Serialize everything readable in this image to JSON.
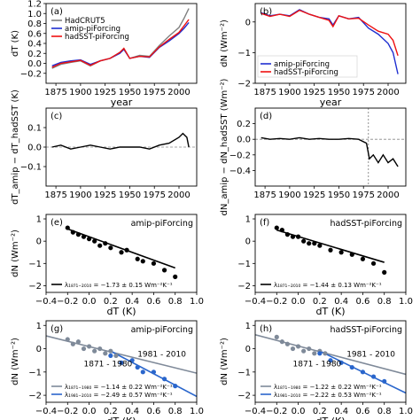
{
  "chart_data": [
    {
      "panel": "a",
      "panel_label": "(a)",
      "type": "line",
      "xlabel": "year",
      "ylabel": "dT (K)",
      "xlim": [
        1865,
        2018
      ],
      "ylim": [
        -0.4,
        1.2
      ],
      "xticks": [
        1875,
        1900,
        1925,
        1950,
        1975,
        2000
      ],
      "yticks": [
        -0.2,
        0.0,
        0.2,
        0.4,
        0.6,
        0.8,
        1.0,
        1.2
      ],
      "legend": {
        "placement": "top-left",
        "entries": [
          "HadCRUT5",
          "amip-piForcing",
          "hadSST-piForcing"
        ]
      },
      "series": [
        {
          "name": "HadCRUT5",
          "color": "#808080",
          "x": [
            1871,
            1880,
            1890,
            1900,
            1910,
            1920,
            1930,
            1940,
            1944,
            1950,
            1960,
            1970,
            1980,
            1990,
            2000,
            2005,
            2010
          ],
          "y": [
            -0.1,
            -0.02,
            0.02,
            0.05,
            -0.05,
            0.05,
            0.1,
            0.22,
            0.3,
            0.1,
            0.16,
            0.14,
            0.36,
            0.55,
            0.72,
            0.9,
            1.1
          ]
        },
        {
          "name": "amip-piForcing",
          "color": "#1f2fd0",
          "x": [
            1871,
            1880,
            1890,
            1900,
            1910,
            1920,
            1930,
            1940,
            1944,
            1950,
            1960,
            1970,
            1980,
            1990,
            2000,
            2005,
            2010
          ],
          "y": [
            -0.05,
            0.02,
            0.05,
            0.07,
            -0.02,
            0.05,
            0.1,
            0.2,
            0.28,
            0.1,
            0.14,
            0.12,
            0.32,
            0.45,
            0.6,
            0.7,
            0.82
          ]
        },
        {
          "name": "hadSST-piForcing",
          "color": "#ee1111",
          "x": [
            1871,
            1880,
            1890,
            1900,
            1910,
            1920,
            1930,
            1940,
            1944,
            1950,
            1960,
            1970,
            1980,
            1990,
            2000,
            2005,
            2010
          ],
          "y": [
            -0.08,
            0.0,
            0.03,
            0.06,
            -0.04,
            0.05,
            0.1,
            0.22,
            0.3,
            0.1,
            0.14,
            0.13,
            0.33,
            0.48,
            0.62,
            0.75,
            0.88
          ]
        }
      ]
    },
    {
      "panel": "b",
      "panel_label": "(b)",
      "type": "line",
      "xlabel": "year",
      "ylabel": "dN (Wm⁻²)",
      "xlim": [
        1865,
        2018
      ],
      "ylim": [
        -2.0,
        0.6
      ],
      "xticks": [
        1875,
        1900,
        1925,
        1950,
        1975,
        2000
      ],
      "yticks": [
        0,
        -1,
        -2
      ],
      "legend": {
        "placement": "bottom-left",
        "entries": [
          "amip-piForcing",
          "hadSST-piForcing"
        ]
      },
      "series": [
        {
          "name": "amip-piForcing",
          "color": "#1f2fd0",
          "x": [
            1871,
            1880,
            1890,
            1900,
            1910,
            1920,
            1930,
            1940,
            1944,
            1950,
            1960,
            1970,
            1980,
            1990,
            2000,
            2005,
            2010
          ],
          "y": [
            0.3,
            0.2,
            0.25,
            0.2,
            0.4,
            0.25,
            0.15,
            0.1,
            -0.1,
            0.2,
            0.1,
            0.15,
            -0.2,
            -0.4,
            -0.7,
            -1.0,
            -1.7
          ]
        },
        {
          "name": "hadSST-piForcing",
          "color": "#ee1111",
          "x": [
            1871,
            1880,
            1890,
            1900,
            1910,
            1920,
            1930,
            1940,
            1944,
            1950,
            1960,
            1970,
            1980,
            1990,
            2000,
            2005,
            2010
          ],
          "y": [
            0.28,
            0.18,
            0.25,
            0.18,
            0.38,
            0.25,
            0.15,
            0.05,
            -0.15,
            0.2,
            0.1,
            0.12,
            -0.1,
            -0.3,
            -0.4,
            -0.6,
            -1.1
          ]
        }
      ]
    },
    {
      "panel": "c",
      "panel_label": "(c)",
      "type": "line",
      "xlabel": "",
      "ylabel": "dT_amip − dT_hadSST (K)",
      "xlim": [
        1865,
        2018
      ],
      "ylim": [
        -0.2,
        0.2
      ],
      "xticks": [
        1875,
        1900,
        1925,
        1950,
        1975,
        2000
      ],
      "yticks": [
        -0.1,
        0.0,
        0.1
      ],
      "series": [
        {
          "color": "#000000",
          "x": [
            1871,
            1880,
            1890,
            1900,
            1910,
            1920,
            1930,
            1940,
            1950,
            1960,
            1970,
            1980,
            1990,
            2000,
            2004,
            2008,
            2010
          ],
          "y": [
            0.0,
            0.01,
            -0.01,
            0.0,
            0.01,
            0.0,
            -0.01,
            0.0,
            0.0,
            0.0,
            -0.01,
            0.01,
            0.02,
            0.05,
            0.07,
            0.05,
            0.0
          ]
        }
      ]
    },
    {
      "panel": "d",
      "panel_label": "(d)",
      "type": "line",
      "xlabel": "",
      "ylabel": "dN_amip − dN_hadSST (Wm⁻²)",
      "xlim": [
        1865,
        2018
      ],
      "ylim": [
        -0.6,
        0.4
      ],
      "xticks": [
        1875,
        1900,
        1925,
        1950,
        1975,
        2000
      ],
      "yticks": [
        -0.4,
        -0.2,
        0.0,
        0.2
      ],
      "vline_x": 1980,
      "series": [
        {
          "color": "#000000",
          "x": [
            1871,
            1880,
            1890,
            1900,
            1910,
            1920,
            1930,
            1940,
            1950,
            1960,
            1970,
            1978,
            1981,
            1985,
            1990,
            1995,
            2000,
            2005,
            2010
          ],
          "y": [
            0.02,
            0.0,
            0.01,
            0.0,
            0.02,
            0.0,
            0.01,
            0.0,
            0.0,
            0.01,
            0.0,
            -0.05,
            -0.25,
            -0.2,
            -0.3,
            -0.2,
            -0.3,
            -0.25,
            -0.35
          ]
        }
      ]
    },
    {
      "panel": "e",
      "panel_label": "(e)",
      "type": "scatter",
      "title": "amip-piForcing",
      "xlabel": "dT (K)",
      "ylabel": "dN (Wm⁻²)",
      "xlim": [
        -0.4,
        1.0
      ],
      "ylim": [
        -2.3,
        1.2
      ],
      "xticks": [
        -0.4,
        -0.2,
        0.0,
        0.2,
        0.4,
        0.6,
        0.8,
        1.0
      ],
      "yticks": [
        1,
        0,
        -1,
        -2
      ],
      "legend": {
        "placement": "bottom-left",
        "entries": [
          "λ₁₈₇₁₋₂₀₁₀ = −1.73 ± 0.15 Wm⁻²K⁻¹"
        ]
      },
      "series": [
        {
          "color": "#000000",
          "points": [
            [
              -0.2,
              0.6
            ],
            [
              -0.15,
              0.4
            ],
            [
              -0.1,
              0.3
            ],
            [
              -0.05,
              0.2
            ],
            [
              0.0,
              0.1
            ],
            [
              0.05,
              0.0
            ],
            [
              0.1,
              -0.2
            ],
            [
              0.15,
              -0.1
            ],
            [
              0.2,
              -0.3
            ],
            [
              0.3,
              -0.5
            ],
            [
              0.35,
              -0.4
            ],
            [
              0.45,
              -0.8
            ],
            [
              0.5,
              -0.9
            ],
            [
              0.6,
              -1.0
            ],
            [
              0.7,
              -1.3
            ],
            [
              0.8,
              -1.6
            ]
          ]
        }
      ],
      "fit": {
        "color": "#000000",
        "x": [
          -0.2,
          0.8
        ],
        "y": [
          0.55,
          -1.2
        ]
      }
    },
    {
      "panel": "f",
      "panel_label": "(f)",
      "type": "scatter",
      "title": "hadSST-piForcing",
      "xlabel": "dT (K)",
      "ylabel": "",
      "xlim": [
        -0.4,
        1.0
      ],
      "ylim": [
        -2.3,
        1.2
      ],
      "xticks": [
        -0.4,
        -0.2,
        0.0,
        0.2,
        0.4,
        0.6,
        0.8,
        1.0
      ],
      "yticks": [
        1,
        0,
        -1,
        -2
      ],
      "legend": {
        "placement": "bottom-left",
        "entries": [
          "λ₁₈₇₁₋₂₀₁₀ = −1.44 ± 0.13 Wm⁻²K⁻¹"
        ]
      },
      "series": [
        {
          "color": "#000000",
          "points": [
            [
              -0.2,
              0.6
            ],
            [
              -0.15,
              0.5
            ],
            [
              -0.1,
              0.3
            ],
            [
              -0.05,
              0.2
            ],
            [
              0.0,
              0.2
            ],
            [
              0.05,
              0.0
            ],
            [
              0.1,
              -0.1
            ],
            [
              0.15,
              -0.1
            ],
            [
              0.2,
              -0.2
            ],
            [
              0.3,
              -0.4
            ],
            [
              0.4,
              -0.5
            ],
            [
              0.5,
              -0.6
            ],
            [
              0.6,
              -0.8
            ],
            [
              0.7,
              -1.0
            ],
            [
              0.8,
              -1.4
            ]
          ]
        }
      ],
      "fit": {
        "color": "#000000",
        "x": [
          -0.2,
          0.8
        ],
        "y": [
          0.5,
          -0.95
        ]
      }
    },
    {
      "panel": "g",
      "panel_label": "(g)",
      "type": "scatter",
      "title": "amip-piForcing",
      "xlabel": "dT (K)",
      "ylabel": "dN (Wm⁻²)",
      "xlim": [
        -0.4,
        1.0
      ],
      "ylim": [
        -2.3,
        1.2
      ],
      "xticks": [
        -0.4,
        -0.2,
        0.0,
        0.2,
        0.4,
        0.6,
        0.8,
        1.0
      ],
      "yticks": [
        1,
        0,
        -1,
        -2
      ],
      "legend": {
        "placement": "bottom-left",
        "entries": [
          "λ₁₈₇₁₋₁₉₈₀ = −1.14 ± 0.22 Wm⁻²K⁻¹",
          "λ₁₉₈₁₋₂₀₁₀ = −2.49 ± 0.57 Wm⁻²K⁻¹"
        ]
      },
      "annotations": [
        {
          "text": "1871 - 1980",
          "color": "#7f8a99",
          "at": [
            -0.05,
            -0.75
          ]
        },
        {
          "text": "1981 - 2010",
          "color": "#2a66cc",
          "at": [
            0.45,
            -0.35
          ]
        }
      ],
      "series": [
        {
          "name": "1871 - 1980",
          "color": "#7f8a99",
          "points": [
            [
              -0.2,
              0.4
            ],
            [
              -0.15,
              0.2
            ],
            [
              -0.1,
              0.3
            ],
            [
              -0.05,
              0.0
            ],
            [
              0.0,
              0.1
            ],
            [
              0.05,
              -0.1
            ],
            [
              0.1,
              0.0
            ],
            [
              0.15,
              -0.2
            ],
            [
              0.2,
              -0.1
            ],
            [
              0.25,
              -0.3
            ]
          ]
        },
        {
          "name": "1981 - 2010",
          "color": "#2a66cc",
          "points": [
            [
              0.2,
              -0.3
            ],
            [
              0.3,
              -0.6
            ],
            [
              0.4,
              -0.5
            ],
            [
              0.45,
              -0.8
            ],
            [
              0.5,
              -1.0
            ],
            [
              0.6,
              -1.0
            ],
            [
              0.7,
              -1.3
            ],
            [
              0.8,
              -1.6
            ]
          ]
        }
      ],
      "fits": [
        {
          "color": "#7f8a99",
          "x": [
            -0.4,
            1.0
          ],
          "y": [
            0.55,
            -1.05
          ]
        },
        {
          "color": "#2a66cc",
          "x": [
            0.2,
            1.0
          ],
          "y": [
            -0.1,
            -2.05
          ]
        }
      ]
    },
    {
      "panel": "h",
      "panel_label": "(h)",
      "type": "scatter",
      "title": "hadSST-piForcing",
      "xlabel": "dT (K)",
      "ylabel": "dN (Wm⁻²)",
      "xlim": [
        -0.4,
        1.0
      ],
      "ylim": [
        -2.3,
        1.2
      ],
      "xticks": [
        -0.4,
        -0.2,
        0.0,
        0.2,
        0.4,
        0.6,
        0.8,
        1.0
      ],
      "yticks": [
        1,
        0,
        -1,
        -2
      ],
      "legend": {
        "placement": "bottom-left",
        "entries": [
          "λ₁₈₇₁₋₁₉₈₀ = −1.22 ± 0.22 Wm⁻²K⁻¹",
          "λ₁₉₈₁₋₂₀₁₀ = −2.22 ± 0.53 Wm⁻²K⁻¹"
        ]
      },
      "annotations": [
        {
          "text": "1871 - 1980",
          "color": "#7f8a99",
          "at": [
            -0.05,
            -0.75
          ]
        },
        {
          "text": "1981 - 2010",
          "color": "#2a66cc",
          "at": [
            0.45,
            -0.35
          ]
        }
      ],
      "series": [
        {
          "name": "1871 - 1980",
          "color": "#7f8a99",
          "points": [
            [
              -0.2,
              0.5
            ],
            [
              -0.15,
              0.3
            ],
            [
              -0.1,
              0.2
            ],
            [
              -0.05,
              0.0
            ],
            [
              0.0,
              0.1
            ],
            [
              0.05,
              -0.1
            ],
            [
              0.1,
              0.0
            ],
            [
              0.15,
              -0.2
            ],
            [
              0.2,
              -0.1
            ],
            [
              0.25,
              -0.2
            ]
          ]
        },
        {
          "name": "1981 - 2010",
          "color": "#2a66cc",
          "points": [
            [
              0.2,
              -0.2
            ],
            [
              0.3,
              -0.5
            ],
            [
              0.4,
              -0.6
            ],
            [
              0.5,
              -0.8
            ],
            [
              0.6,
              -1.0
            ],
            [
              0.7,
              -1.2
            ],
            [
              0.8,
              -1.4
            ]
          ]
        }
      ],
      "fits": [
        {
          "color": "#7f8a99",
          "x": [
            -0.4,
            1.0
          ],
          "y": [
            0.6,
            -1.1
          ]
        },
        {
          "color": "#2a66cc",
          "x": [
            0.2,
            1.0
          ],
          "y": [
            -0.1,
            -1.9
          ]
        }
      ]
    }
  ]
}
